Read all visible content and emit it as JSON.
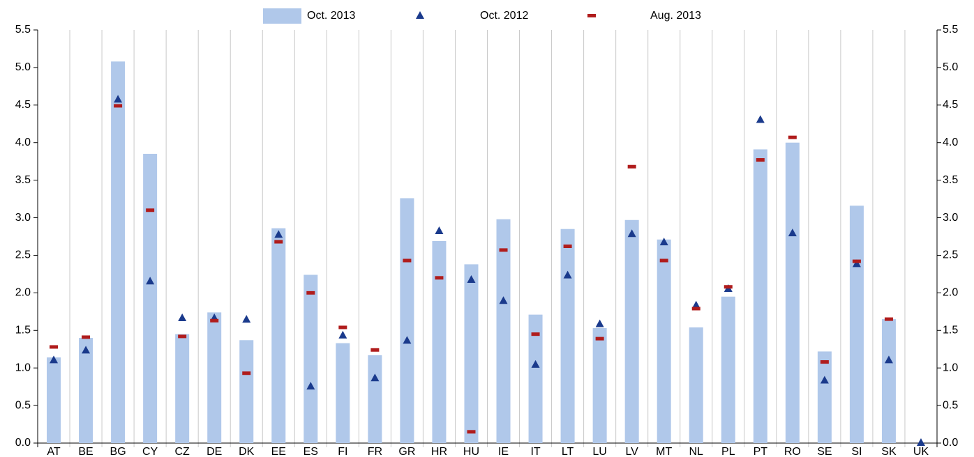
{
  "chart_data": {
    "type": "bar",
    "categories": [
      "AT",
      "BE",
      "BG",
      "CY",
      "CZ",
      "DE",
      "DK",
      "EE",
      "ES",
      "FI",
      "FR",
      "GR",
      "HR",
      "HU",
      "IE",
      "IT",
      "LT",
      "LU",
      "LV",
      "MT",
      "NL",
      "PL",
      "PT",
      "RO",
      "SE",
      "SI",
      "SK",
      "UK"
    ],
    "series": [
      {
        "name": "Oct. 2013",
        "marker": "bar",
        "color": "#b0c8ea",
        "values": [
          1.14,
          1.4,
          5.08,
          3.85,
          1.45,
          1.74,
          1.37,
          2.86,
          2.24,
          1.33,
          1.17,
          3.26,
          2.69,
          2.38,
          2.98,
          1.71,
          2.85,
          1.53,
          2.97,
          2.71,
          1.54,
          1.95,
          3.91,
          4.0,
          1.22,
          3.16,
          1.65,
          null
        ]
      },
      {
        "name": "Oct. 2012",
        "marker": "triangle",
        "color": "#1a3a8c",
        "values": [
          1.1,
          1.23,
          4.57,
          2.15,
          1.66,
          1.66,
          1.64,
          2.77,
          0.75,
          1.43,
          0.86,
          1.36,
          2.82,
          2.17,
          1.89,
          1.04,
          2.23,
          1.58,
          2.78,
          2.67,
          1.83,
          2.05,
          4.3,
          2.79,
          0.83,
          2.38,
          1.1,
          0
        ]
      },
      {
        "name": "Aug. 2013",
        "marker": "dash",
        "color": "#b01c1c",
        "values": [
          1.28,
          1.41,
          4.49,
          3.1,
          1.42,
          1.63,
          0.93,
          2.68,
          2.0,
          1.54,
          1.24,
          2.43,
          2.2,
          0.15,
          2.57,
          1.45,
          2.62,
          1.39,
          3.68,
          2.43,
          1.79,
          2.08,
          3.77,
          4.07,
          1.08,
          2.42,
          1.65,
          null
        ]
      }
    ],
    "ylim": [
      0,
      5.5
    ],
    "yticks": [
      {
        "value": 0,
        "label": "0.0"
      },
      0.5,
      {
        "value": 1,
        "label": "1.0"
      },
      1.5,
      {
        "value": 2,
        "label": "2.0"
      },
      2.5,
      {
        "value": 3,
        "label": "3.0"
      },
      3.5,
      {
        "value": 4,
        "label": "4.0"
      },
      4.5,
      {
        "value": 5,
        "label": "5.0"
      },
      5.5
    ],
    "y2lim": [
      0,
      5.5
    ],
    "y2ticks": [
      {
        "value": 0,
        "label": "0.0"
      },
      0.5,
      {
        "value": 1,
        "label": "1.0"
      },
      1.5,
      {
        "value": 2,
        "label": "2.0"
      },
      2.5,
      {
        "value": 3,
        "label": "3.0"
      },
      3.5,
      {
        "value": 4,
        "label": "4.0"
      },
      4.5,
      {
        "value": 5,
        "label": "5.0"
      },
      5.5
    ],
    "legend": "top"
  }
}
